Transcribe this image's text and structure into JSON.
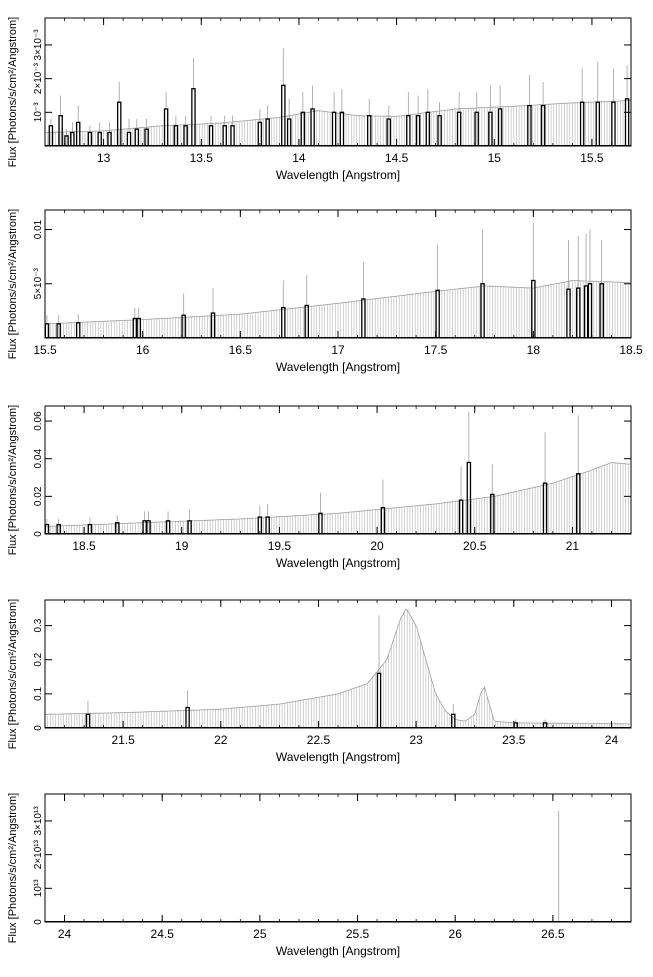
{
  "chart_data": [
    {
      "type": "bar",
      "xlabel": "Wavelength [Angstrom]",
      "ylabel": "Flux [Photons/s/cm²/Angstrom]",
      "xlim": [
        12.7,
        15.7
      ],
      "ylim": [
        0,
        0.0038
      ],
      "xticks": [
        13,
        13.5,
        14,
        14.5,
        15,
        15.5
      ],
      "xtick_labels": [
        "13",
        "13.5",
        "14",
        "14.5",
        "15",
        "15.5"
      ],
      "yticks": [
        0.001,
        0.002,
        0.003
      ],
      "ytick_labels": [
        "10⁻³",
        "2×10⁻³",
        "3×10⁻³"
      ],
      "continuum": [
        [
          12.7,
          0.0004
        ],
        [
          13.0,
          0.00045
        ],
        [
          13.3,
          0.0006
        ],
        [
          13.6,
          0.00068
        ],
        [
          13.9,
          0.00085
        ],
        [
          14.1,
          0.00105
        ],
        [
          14.3,
          0.0009
        ],
        [
          14.5,
          0.00088
        ],
        [
          14.8,
          0.0011
        ],
        [
          15.1,
          0.00118
        ],
        [
          15.4,
          0.00128
        ],
        [
          15.7,
          0.00135
        ]
      ],
      "lines": [
        {
          "x": 12.73,
          "y": 0.0006,
          "err": 0.0002
        },
        {
          "x": 12.78,
          "y": 0.0009,
          "err": 0.0006
        },
        {
          "x": 12.81,
          "y": 0.0003,
          "err": 0.0002
        },
        {
          "x": 12.84,
          "y": 0.0004,
          "err": 0.0003
        },
        {
          "x": 12.87,
          "y": 0.0007,
          "err": 0.0005
        },
        {
          "x": 12.93,
          "y": 0.0004,
          "err": 0.0002
        },
        {
          "x": 12.98,
          "y": 0.0004,
          "err": 0.0003
        },
        {
          "x": 13.03,
          "y": 0.0004,
          "err": 0.0003
        },
        {
          "x": 13.08,
          "y": 0.0013,
          "err": 0.0006
        },
        {
          "x": 13.13,
          "y": 0.0004,
          "err": 0.0004
        },
        {
          "x": 13.17,
          "y": 0.0005,
          "err": 0.0003
        },
        {
          "x": 13.22,
          "y": 0.0005,
          "err": 0.0003
        },
        {
          "x": 13.32,
          "y": 0.0011,
          "err": 0.0005
        },
        {
          "x": 13.37,
          "y": 0.0006,
          "err": 0.0003
        },
        {
          "x": 13.42,
          "y": 0.0006,
          "err": 0.0003
        },
        {
          "x": 13.46,
          "y": 0.0017,
          "err": 0.0009
        },
        {
          "x": 13.55,
          "y": 0.0006,
          "err": 0.0003
        },
        {
          "x": 13.62,
          "y": 0.0006,
          "err": 0.0003
        },
        {
          "x": 13.66,
          "y": 0.0006,
          "err": 0.0003
        },
        {
          "x": 13.8,
          "y": 0.0007,
          "err": 0.0004
        },
        {
          "x": 13.84,
          "y": 0.0008,
          "err": 0.0004
        },
        {
          "x": 13.92,
          "y": 0.0018,
          "err": 0.0011
        },
        {
          "x": 13.95,
          "y": 0.0008,
          "err": 0.0006
        },
        {
          "x": 14.02,
          "y": 0.001,
          "err": 0.0006
        },
        {
          "x": 14.07,
          "y": 0.0011,
          "err": 0.0007
        },
        {
          "x": 14.18,
          "y": 0.001,
          "err": 0.0006
        },
        {
          "x": 14.22,
          "y": 0.001,
          "err": 0.0007
        },
        {
          "x": 14.36,
          "y": 0.0009,
          "err": 0.0005
        },
        {
          "x": 14.46,
          "y": 0.0008,
          "err": 0.0004
        },
        {
          "x": 14.56,
          "y": 0.0009,
          "err": 0.0007
        },
        {
          "x": 14.61,
          "y": 0.0009,
          "err": 0.0006
        },
        {
          "x": 14.66,
          "y": 0.001,
          "err": 0.0007
        },
        {
          "x": 14.72,
          "y": 0.0009,
          "err": 0.0004
        },
        {
          "x": 14.82,
          "y": 0.001,
          "err": 0.0006
        },
        {
          "x": 14.91,
          "y": 0.001,
          "err": 0.0006
        },
        {
          "x": 14.98,
          "y": 0.001,
          "err": 0.0008
        },
        {
          "x": 15.03,
          "y": 0.0011,
          "err": 0.0007
        },
        {
          "x": 15.18,
          "y": 0.0012,
          "err": 0.0009
        },
        {
          "x": 15.25,
          "y": 0.0012,
          "err": 0.0007
        },
        {
          "x": 15.45,
          "y": 0.0013,
          "err": 0.001
        },
        {
          "x": 15.53,
          "y": 0.0013,
          "err": 0.0012
        },
        {
          "x": 15.61,
          "y": 0.0013,
          "err": 0.001
        },
        {
          "x": 15.68,
          "y": 0.0014,
          "err": 0.001
        }
      ]
    },
    {
      "type": "bar",
      "xlabel": "Wavelength [Angstrom]",
      "ylabel": "Flux [Photons/s/cm²/Angstrom]",
      "xlim": [
        15.5,
        18.5
      ],
      "ylim": [
        0,
        0.0118
      ],
      "xticks": [
        15.5,
        16,
        16.5,
        17,
        17.5,
        18,
        18.5
      ],
      "xtick_labels": [
        "15.5",
        "16",
        "16.5",
        "17",
        "17.5",
        "18",
        "18.5"
      ],
      "yticks": [
        0.005,
        0.01
      ],
      "ytick_labels": [
        "5×10⁻³",
        "0.01"
      ],
      "continuum": [
        [
          15.5,
          0.0013
        ],
        [
          16.0,
          0.0017
        ],
        [
          16.5,
          0.0022
        ],
        [
          17.0,
          0.0032
        ],
        [
          17.5,
          0.0043
        ],
        [
          17.75,
          0.0048
        ],
        [
          18.0,
          0.0046
        ],
        [
          18.2,
          0.0053
        ],
        [
          18.5,
          0.0051
        ]
      ],
      "lines": [
        {
          "x": 15.51,
          "y": 0.0013,
          "err": 0.0008
        },
        {
          "x": 15.57,
          "y": 0.0013,
          "err": 0.0008
        },
        {
          "x": 15.67,
          "y": 0.0014,
          "err": 0.0008
        },
        {
          "x": 15.96,
          "y": 0.0018,
          "err": 0.001
        },
        {
          "x": 15.98,
          "y": 0.0018,
          "err": 0.001
        },
        {
          "x": 16.21,
          "y": 0.0021,
          "err": 0.002
        },
        {
          "x": 16.36,
          "y": 0.0023,
          "err": 0.0023
        },
        {
          "x": 16.72,
          "y": 0.0028,
          "err": 0.0025
        },
        {
          "x": 16.84,
          "y": 0.003,
          "err": 0.0028
        },
        {
          "x": 17.13,
          "y": 0.0036,
          "err": 0.0034
        },
        {
          "x": 17.51,
          "y": 0.0044,
          "err": 0.0042
        },
        {
          "x": 17.74,
          "y": 0.005,
          "err": 0.005
        },
        {
          "x": 18.0,
          "y": 0.0053,
          "err": 0.0053
        },
        {
          "x": 18.18,
          "y": 0.0045,
          "err": 0.0045
        },
        {
          "x": 18.23,
          "y": 0.0046,
          "err": 0.0048
        },
        {
          "x": 18.27,
          "y": 0.0048,
          "err": 0.0048
        },
        {
          "x": 18.29,
          "y": 0.005,
          "err": 0.005
        },
        {
          "x": 18.35,
          "y": 0.005,
          "err": 0.004
        }
      ]
    },
    {
      "type": "bar",
      "xlabel": "Wavelength [Angstrom]",
      "ylabel": "Flux [Photons/s/cm²/Angstrom]",
      "xlim": [
        18.3,
        21.3
      ],
      "ylim": [
        0,
        0.068
      ],
      "xticks": [
        18.5,
        19,
        19.5,
        20,
        20.5,
        21
      ],
      "xtick_labels": [
        "18.5",
        "19",
        "19.5",
        "20",
        "20.5",
        "21"
      ],
      "yticks": [
        0,
        0.02,
        0.04,
        0.06
      ],
      "ytick_labels": [
        "0",
        "0.02",
        "0.04",
        "0.06"
      ],
      "continuum": [
        [
          18.3,
          0.004
        ],
        [
          18.8,
          0.006
        ],
        [
          19.3,
          0.008
        ],
        [
          19.8,
          0.011
        ],
        [
          20.3,
          0.016
        ],
        [
          20.6,
          0.02
        ],
        [
          20.9,
          0.027
        ],
        [
          21.1,
          0.034
        ],
        [
          21.2,
          0.038
        ],
        [
          21.3,
          0.037
        ]
      ],
      "lines": [
        {
          "x": 18.31,
          "y": 0.005,
          "err": 0.003
        },
        {
          "x": 18.37,
          "y": 0.005,
          "err": 0.003
        },
        {
          "x": 18.53,
          "y": 0.005,
          "err": 0.004
        },
        {
          "x": 18.67,
          "y": 0.006,
          "err": 0.004
        },
        {
          "x": 18.81,
          "y": 0.007,
          "err": 0.005
        },
        {
          "x": 18.83,
          "y": 0.007,
          "err": 0.005
        },
        {
          "x": 18.93,
          "y": 0.007,
          "err": 0.005
        },
        {
          "x": 19.04,
          "y": 0.007,
          "err": 0.006
        },
        {
          "x": 19.4,
          "y": 0.009,
          "err": 0.006
        },
        {
          "x": 19.44,
          "y": 0.009,
          "err": 0.007
        },
        {
          "x": 19.71,
          "y": 0.011,
          "err": 0.011
        },
        {
          "x": 20.03,
          "y": 0.014,
          "err": 0.015
        },
        {
          "x": 20.43,
          "y": 0.018,
          "err": 0.018
        },
        {
          "x": 20.47,
          "y": 0.038,
          "err": 0.027
        },
        {
          "x": 20.59,
          "y": 0.021,
          "err": 0.016
        },
        {
          "x": 20.86,
          "y": 0.027,
          "err": 0.027
        },
        {
          "x": 21.03,
          "y": 0.032,
          "err": 0.031
        }
      ]
    },
    {
      "type": "bar",
      "xlabel": "Wavelength [Angstrom]",
      "ylabel": "Flux [Photons/s/cm²/Angstrom]",
      "xlim": [
        21.1,
        24.1
      ],
      "ylim": [
        0,
        0.375
      ],
      "xticks": [
        21.5,
        22,
        22.5,
        23,
        23.5,
        24
      ],
      "xtick_labels": [
        "21.5",
        "22",
        "22.5",
        "23",
        "23.5",
        "24"
      ],
      "yticks": [
        0,
        0.1,
        0.2,
        0.3
      ],
      "ytick_labels": [
        "0",
        "0.1",
        "0.2",
        "0.3"
      ],
      "continuum": [
        [
          21.1,
          0.04
        ],
        [
          21.5,
          0.045
        ],
        [
          22.0,
          0.055
        ],
        [
          22.3,
          0.07
        ],
        [
          22.6,
          0.1
        ],
        [
          22.75,
          0.13
        ],
        [
          22.85,
          0.2
        ],
        [
          22.92,
          0.32
        ],
        [
          22.95,
          0.35
        ],
        [
          23.0,
          0.3
        ],
        [
          23.05,
          0.2
        ],
        [
          23.1,
          0.1
        ],
        [
          23.15,
          0.05
        ],
        [
          23.2,
          0.025
        ],
        [
          23.25,
          0.02
        ],
        [
          23.3,
          0.04
        ],
        [
          23.33,
          0.1
        ],
        [
          23.35,
          0.12
        ],
        [
          23.37,
          0.08
        ],
        [
          23.4,
          0.02
        ],
        [
          23.5,
          0.015
        ],
        [
          24.1,
          0.012
        ]
      ],
      "lines": [
        {
          "x": 21.32,
          "y": 0.04,
          "err": 0.04
        },
        {
          "x": 21.83,
          "y": 0.06,
          "err": 0.05
        },
        {
          "x": 22.81,
          "y": 0.16,
          "err": 0.17
        },
        {
          "x": 23.19,
          "y": 0.04,
          "err": 0.03
        },
        {
          "x": 23.51,
          "y": 0.015,
          "err": 0.01
        },
        {
          "x": 23.66,
          "y": 0.015,
          "err": 0.01
        }
      ]
    },
    {
      "type": "bar",
      "xlabel": "Wavelength [Angstrom]",
      "ylabel": "Flux [Photons/s/cm²/Angstrom]",
      "xlim": [
        23.9,
        26.9
      ],
      "ylim": [
        0,
        38000000000000.0
      ],
      "xticks": [
        24,
        24.5,
        25,
        25.5,
        26,
        26.5
      ],
      "xtick_labels": [
        "24",
        "24.5",
        "25",
        "25.5",
        "26",
        "26.5"
      ],
      "yticks": [
        0,
        10000000000000.0,
        20000000000000.0,
        30000000000000.0
      ],
      "ytick_labels": [
        "0",
        "10¹³",
        "2×10¹³",
        "3×10¹³"
      ],
      "continuum": [],
      "lines": [],
      "spikes": [
        {
          "x": 26.53,
          "y": 33000000000000.0
        }
      ]
    }
  ]
}
